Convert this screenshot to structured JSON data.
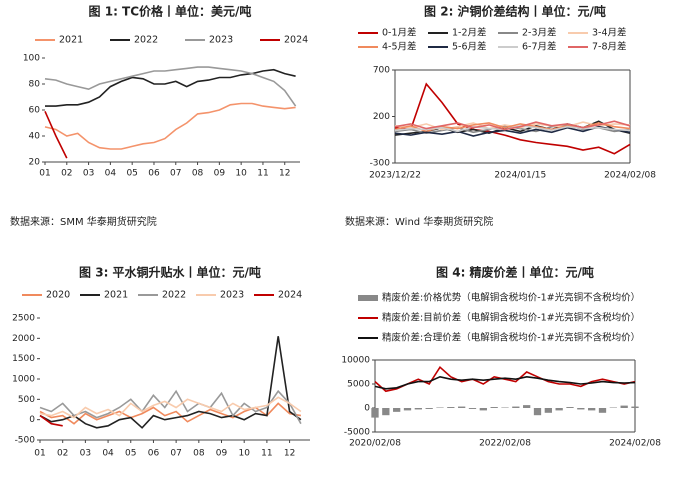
{
  "chart_data": [
    {
      "type": "line",
      "title": "图 1:  TC价格丨单位：美元/吨",
      "source": "数据来源：SMM  华泰期货研究院",
      "x": [
        1,
        1.5,
        2,
        2.5,
        3,
        3.5,
        4,
        4.5,
        5,
        5.5,
        6,
        6.5,
        7,
        7.5,
        8,
        8.5,
        9,
        9.5,
        10,
        10.5,
        11,
        11.5,
        12,
        12.5
      ],
      "xlim": [
        1,
        12.7
      ],
      "xticks": [
        {
          "value": 1,
          "label": "01"
        },
        {
          "value": 2,
          "label": "02"
        },
        {
          "value": 3,
          "label": "03"
        },
        {
          "value": 4,
          "label": "04"
        },
        {
          "value": 5,
          "label": "05"
        },
        {
          "value": 6,
          "label": "06"
        },
        {
          "value": 7,
          "label": "07"
        },
        {
          "value": 8,
          "label": "08"
        },
        {
          "value": 9,
          "label": "09"
        },
        {
          "value": 10,
          "label": "10"
        },
        {
          "value": 11,
          "label": "11"
        },
        {
          "value": 12,
          "label": "12"
        }
      ],
      "ylim": [
        20,
        100
      ],
      "yticks": [
        20,
        40,
        60,
        80,
        100
      ],
      "series": [
        {
          "name": "2021",
          "color": "#f4936b",
          "values": [
            47,
            45,
            40,
            42,
            35,
            31,
            30,
            30,
            32,
            34,
            35,
            38,
            45,
            50,
            57,
            58,
            60,
            64,
            65,
            65,
            63,
            62,
            61,
            62
          ]
        },
        {
          "name": "2022",
          "color": "#222222",
          "values": [
            63,
            63,
            64,
            64,
            66,
            70,
            78,
            82,
            85,
            84,
            80,
            80,
            82,
            78,
            82,
            83,
            85,
            85,
            87,
            88,
            90,
            91,
            88,
            86
          ]
        },
        {
          "name": "2023",
          "color": "#999999",
          "values": [
            84,
            83,
            80,
            78,
            76,
            80,
            82,
            84,
            86,
            88,
            90,
            90,
            91,
            92,
            93,
            93,
            92,
            91,
            90,
            88,
            85,
            82,
            75,
            63
          ]
        },
        {
          "name": "2024",
          "color": "#c00000",
          "values": [
            59,
            40,
            23,
            null,
            null,
            null,
            null,
            null,
            null,
            null,
            null,
            null,
            null,
            null,
            null,
            null,
            null,
            null,
            null,
            null,
            null,
            null,
            null,
            null
          ]
        }
      ]
    },
    {
      "type": "line",
      "title": "图 2: 沪铜价差结构丨单位：元/吨",
      "source": "数据来源：Wind  华泰期货研究院",
      "categories": [
        "2023/12/22",
        null,
        null,
        null,
        null,
        null,
        null,
        null,
        "2024/01/15",
        null,
        null,
        null,
        null,
        null,
        null,
        "2024/02/08"
      ],
      "ylim": [
        -300,
        700
      ],
      "yticks": [
        -300,
        200,
        700
      ],
      "series": [
        {
          "name": "0-1月差",
          "color": "#c00000",
          "values": [
            80,
            60,
            550,
            350,
            120,
            60,
            40,
            0,
            -50,
            -80,
            -100,
            -120,
            -160,
            -130,
            -200,
            -100
          ]
        },
        {
          "name": "1-2月差",
          "color": "#222222",
          "values": [
            0,
            20,
            40,
            80,
            30,
            60,
            20,
            80,
            40,
            100,
            60,
            120,
            80,
            150,
            60,
            20
          ]
        },
        {
          "name": "2-3月差",
          "color": "#888888",
          "values": [
            40,
            60,
            20,
            50,
            80,
            30,
            60,
            100,
            70,
            40,
            90,
            110,
            60,
            80,
            40,
            60
          ]
        },
        {
          "name": "3-4月差",
          "color": "#f8cbad",
          "values": [
            100,
            80,
            120,
            60,
            90,
            130,
            70,
            110,
            80,
            120,
            100,
            90,
            140,
            100,
            120,
            110
          ]
        },
        {
          "name": "4-5月差",
          "color": "#f08a5d",
          "values": [
            60,
            100,
            40,
            90,
            70,
            110,
            130,
            80,
            120,
            90,
            60,
            100,
            80,
            130,
            90,
            70
          ]
        },
        {
          "name": "5-6月差",
          "color": "#1f2a44",
          "values": [
            20,
            0,
            30,
            10,
            40,
            -10,
            30,
            50,
            20,
            60,
            30,
            80,
            40,
            90,
            60,
            30
          ]
        },
        {
          "name": "6-7月差",
          "color": "#cccccc",
          "values": [
            50,
            70,
            60,
            80,
            40,
            90,
            70,
            60,
            100,
            80,
            50,
            90,
            70,
            80,
            60,
            50
          ]
        },
        {
          "name": "7-8月差",
          "color": "#e06666",
          "values": [
            90,
            120,
            70,
            100,
            130,
            80,
            110,
            60,
            90,
            140,
            100,
            120,
            80,
            110,
            150,
            100
          ]
        }
      ]
    },
    {
      "type": "line",
      "title": "图 3: 平水铜升贴水丨单位：元/吨",
      "x": [
        1,
        1.5,
        2,
        2.5,
        3,
        3.5,
        4,
        4.5,
        5,
        5.5,
        6,
        6.5,
        7,
        7.5,
        8,
        8.5,
        9,
        9.5,
        10,
        10.5,
        11,
        11.5,
        12,
        12.5
      ],
      "xlim": [
        1,
        12.9
      ],
      "xticks": [
        {
          "value": 1,
          "label": "01"
        },
        {
          "value": 2,
          "label": "02"
        },
        {
          "value": 3,
          "label": "03"
        },
        {
          "value": 4,
          "label": "04"
        },
        {
          "value": 5,
          "label": "05"
        },
        {
          "value": 6,
          "label": "06"
        },
        {
          "value": 7,
          "label": "07"
        },
        {
          "value": 8,
          "label": "08"
        },
        {
          "value": 9,
          "label": "09"
        },
        {
          "value": 10,
          "label": "10"
        },
        {
          "value": 11,
          "label": "11"
        },
        {
          "value": 12,
          "label": "12"
        }
      ],
      "ylim": [
        -500,
        2500
      ],
      "yticks": [
        -500,
        0,
        500,
        1000,
        1500,
        2000,
        2500
      ],
      "series": [
        {
          "name": "2020",
          "color": "#f08a5d",
          "values": [
            200,
            50,
            100,
            -100,
            150,
            0,
            100,
            200,
            50,
            150,
            300,
            100,
            200,
            -50,
            100,
            250,
            150,
            50,
            200,
            300,
            100,
            400,
            150,
            100
          ]
        },
        {
          "name": "2021",
          "color": "#222222",
          "values": [
            100,
            -50,
            0,
            100,
            -100,
            -200,
            -150,
            0,
            50,
            -200,
            100,
            0,
            50,
            100,
            200,
            150,
            50,
            100,
            0,
            150,
            100,
            2050,
            200,
            0
          ]
        },
        {
          "name": "2022",
          "color": "#999999",
          "values": [
            300,
            200,
            400,
            100,
            200,
            50,
            150,
            300,
            500,
            200,
            600,
            300,
            700,
            200,
            400,
            300,
            650,
            100,
            400,
            200,
            300,
            700,
            400,
            -100
          ]
        },
        {
          "name": "2023",
          "color": "#f8cbad",
          "values": [
            150,
            100,
            200,
            50,
            300,
            150,
            250,
            100,
            400,
            200,
            350,
            450,
            300,
            500,
            400,
            300,
            200,
            400,
            250,
            300,
            350,
            550,
            400,
            200
          ]
        },
        {
          "name": "2024",
          "color": "#c00000",
          "values": [
            100,
            -100,
            -150,
            null,
            null,
            null,
            null,
            null,
            null,
            null,
            null,
            null,
            null,
            null,
            null,
            null,
            null,
            null,
            null,
            null,
            null,
            null,
            null,
            null
          ]
        }
      ]
    },
    {
      "type": "line",
      "title": "图 4: 精废价差丨单位：元/吨",
      "categories": [
        "2020/02/08",
        null,
        null,
        null,
        null,
        null,
        null,
        null,
        null,
        null,
        null,
        null,
        "2022/02/08",
        null,
        null,
        null,
        null,
        null,
        null,
        null,
        null,
        null,
        null,
        null,
        "2024/02/08"
      ],
      "ylim": [
        -5000,
        10000
      ],
      "yticks": [
        -5000,
        0,
        5000,
        10000
      ],
      "series": [
        {
          "name": "精废价差:价格优势（电解铜含税均价-1#光亮铜不含税均价）",
          "type": "bar",
          "color": "#888888",
          "values": [
            -2000,
            -1500,
            -800,
            -500,
            -300,
            -200,
            100,
            200,
            300,
            -200,
            -500,
            200,
            100,
            300,
            600,
            -1500,
            -1000,
            -500,
            200,
            -300,
            -500,
            -1000,
            100,
            500,
            300
          ]
        },
        {
          "name": "精废价差:目前价差（电解铜含税均价-1#光亮铜不含税均价）",
          "color": "#c00000",
          "values": [
            5500,
            3500,
            4000,
            5000,
            6000,
            5000,
            8500,
            6500,
            5500,
            6000,
            5000,
            6500,
            6000,
            5500,
            7500,
            6500,
            5500,
            5000,
            5000,
            4500,
            5500,
            6000,
            5500,
            5000,
            5500
          ]
        },
        {
          "name": "精废价差:合理价差（电解铜含税均价-1#光亮铜不含税均价）",
          "color": "#111111",
          "values": [
            4500,
            4000,
            4200,
            5000,
            5500,
            5500,
            6500,
            6000,
            5800,
            6000,
            5800,
            6000,
            6200,
            6000,
            6500,
            6200,
            5800,
            5500,
            5300,
            5000,
            5200,
            5500,
            5300,
            5200,
            5300
          ]
        }
      ]
    }
  ]
}
